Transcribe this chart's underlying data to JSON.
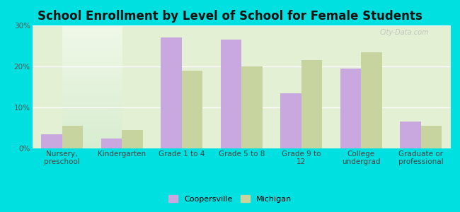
{
  "title": "School Enrollment by Level of School for Female Students",
  "categories": [
    "Nursery,\npreschool",
    "Kindergarten",
    "Grade 1 to 4",
    "Grade 5 to 8",
    "Grade 9 to\n12",
    "College\nundergrad",
    "Graduate or\nprofessional"
  ],
  "coopersville": [
    3.5,
    2.5,
    27.0,
    26.5,
    13.5,
    19.5,
    6.5
  ],
  "michigan": [
    5.5,
    4.5,
    19.0,
    20.0,
    21.5,
    23.5,
    5.5
  ],
  "coopersville_color": "#c9a8e0",
  "michigan_color": "#c8d4a0",
  "background_color": "#00e0e0",
  "ylim": [
    0,
    30
  ],
  "yticks": [
    0,
    10,
    20,
    30
  ],
  "ytick_labels": [
    "0%",
    "10%",
    "20%",
    "30%"
  ],
  "bar_width": 0.35,
  "legend_labels": [
    "Coopersville",
    "Michigan"
  ],
  "watermark": "City-Data.com",
  "title_fontsize": 12,
  "tick_fontsize": 7.5,
  "legend_fontsize": 8
}
